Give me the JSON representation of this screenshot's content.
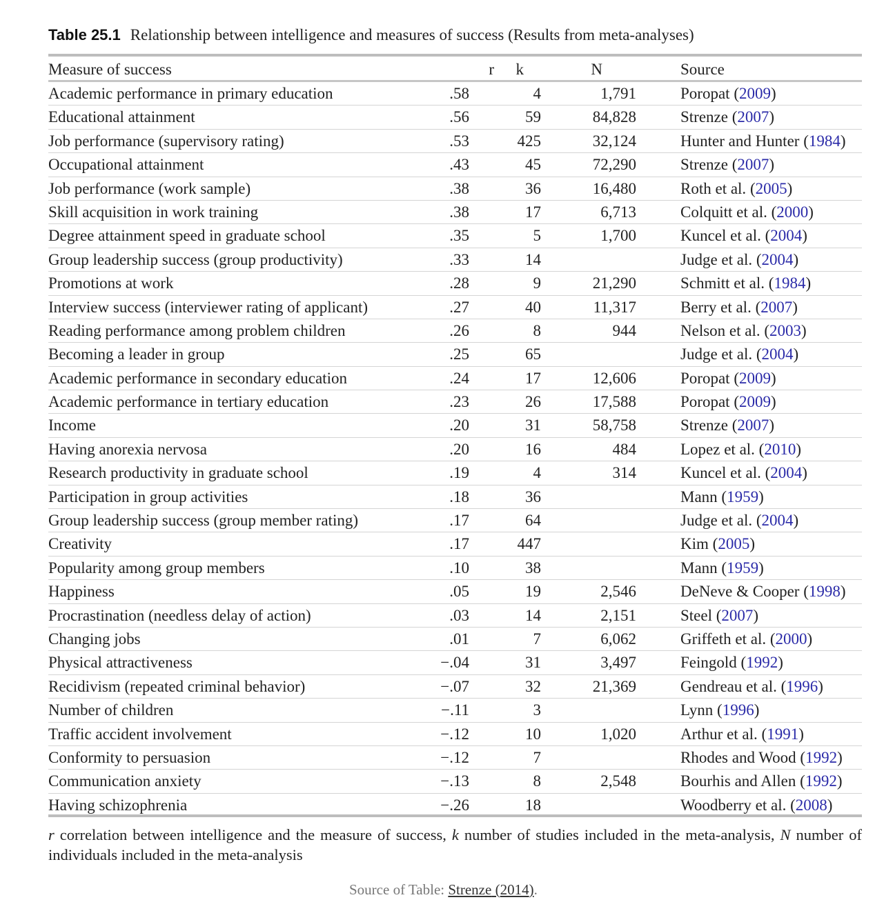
{
  "title": {
    "label": "Table 25.1",
    "text": "Relationship between intelligence and measures of success (Results from meta-analyses)"
  },
  "columns": {
    "measure": "Measure of success",
    "r": "r",
    "k": "k",
    "n": "N",
    "source": "Source"
  },
  "rows": [
    {
      "measure": "Academic performance in primary education",
      "r": ".58",
      "k": "4",
      "n": "1,791",
      "author": "Poropat",
      "year": "2009"
    },
    {
      "measure": "Educational attainment",
      "r": ".56",
      "k": "59",
      "n": "84,828",
      "author": "Strenze",
      "year": "2007"
    },
    {
      "measure": "Job performance (supervisory rating)",
      "r": ".53",
      "k": "425",
      "n": "32,124",
      "author": "Hunter and Hunter",
      "year": "1984"
    },
    {
      "measure": "Occupational attainment",
      "r": ".43",
      "k": "45",
      "n": "72,290",
      "author": "Strenze",
      "year": "2007"
    },
    {
      "measure": "Job performance (work sample)",
      "r": ".38",
      "k": "36",
      "n": "16,480",
      "author": "Roth et al.",
      "year": "2005"
    },
    {
      "measure": "Skill acquisition in work training",
      "r": ".38",
      "k": "17",
      "n": "6,713",
      "author": "Colquitt et al.",
      "year": "2000"
    },
    {
      "measure": "Degree attainment speed in graduate school",
      "r": ".35",
      "k": "5",
      "n": "1,700",
      "author": "Kuncel et al.",
      "year": "2004"
    },
    {
      "measure": "Group leadership success (group productivity)",
      "r": ".33",
      "k": "14",
      "n": "",
      "author": "Judge et al.",
      "year": "2004"
    },
    {
      "measure": "Promotions at work",
      "r": ".28",
      "k": "9",
      "n": "21,290",
      "author": "Schmitt et al.",
      "year": "1984"
    },
    {
      "measure": "Interview success (interviewer rating of applicant)",
      "r": ".27",
      "k": "40",
      "n": "11,317",
      "author": "Berry et al.",
      "year": "2007"
    },
    {
      "measure": "Reading performance among problem children",
      "r": ".26",
      "k": "8",
      "n": "944",
      "author": "Nelson et al.",
      "year": "2003"
    },
    {
      "measure": "Becoming a leader in group",
      "r": ".25",
      "k": "65",
      "n": "",
      "author": "Judge et al.",
      "year": "2004"
    },
    {
      "measure": "Academic performance in secondary education",
      "r": ".24",
      "k": "17",
      "n": "12,606",
      "author": "Poropat",
      "year": "2009"
    },
    {
      "measure": "Academic performance in tertiary education",
      "r": ".23",
      "k": "26",
      "n": "17,588",
      "author": "Poropat",
      "year": "2009"
    },
    {
      "measure": "Income",
      "r": ".20",
      "k": "31",
      "n": "58,758",
      "author": "Strenze",
      "year": "2007"
    },
    {
      "measure": "Having anorexia nervosa",
      "r": ".20",
      "k": "16",
      "n": "484",
      "author": "Lopez et al.",
      "year": "2010"
    },
    {
      "measure": "Research productivity in graduate school",
      "r": ".19",
      "k": "4",
      "n": "314",
      "author": "Kuncel et al.",
      "year": "2004"
    },
    {
      "measure": "Participation in group activities",
      "r": ".18",
      "k": "36",
      "n": "",
      "author": "Mann",
      "year": "1959"
    },
    {
      "measure": "Group leadership success (group member rating)",
      "r": ".17",
      "k": "64",
      "n": "",
      "author": "Judge et al.",
      "year": "2004"
    },
    {
      "measure": "Creativity",
      "r": ".17",
      "k": "447",
      "n": "",
      "author": "Kim",
      "year": "2005"
    },
    {
      "measure": "Popularity among group members",
      "r": ".10",
      "k": "38",
      "n": "",
      "author": "Mann",
      "year": "1959"
    },
    {
      "measure": "Happiness",
      "r": ".05",
      "k": "19",
      "n": "2,546",
      "author": "DeNeve & Cooper",
      "year": "1998"
    },
    {
      "measure": "Procrastination (needless delay of action)",
      "r": ".03",
      "k": "14",
      "n": "2,151",
      "author": "Steel",
      "year": "2007"
    },
    {
      "measure": "Changing jobs",
      "r": ".01",
      "k": "7",
      "n": "6,062",
      "author": "Griffeth et al.",
      "year": "2000"
    },
    {
      "measure": "Physical attractiveness",
      "r": "−.04",
      "k": "31",
      "n": "3,497",
      "author": "Feingold",
      "year": "1992"
    },
    {
      "measure": "Recidivism (repeated criminal behavior)",
      "r": "−.07",
      "k": "32",
      "n": "21,369",
      "author": "Gendreau et al.",
      "year": "1996"
    },
    {
      "measure": "Number of children",
      "r": "−.11",
      "k": "3",
      "n": "",
      "author": "Lynn",
      "year": "1996"
    },
    {
      "measure": "Traffic accident involvement",
      "r": "−.12",
      "k": "10",
      "n": "1,020",
      "author": "Arthur et al.",
      "year": "1991"
    },
    {
      "measure": "Conformity to persuasion",
      "r": "−.12",
      "k": "7",
      "n": "",
      "author": "Rhodes and Wood",
      "year": "1992"
    },
    {
      "measure": "Communication anxiety",
      "r": "−.13",
      "k": "8",
      "n": "2,548",
      "author": "Bourhis and Allen",
      "year": "1992"
    },
    {
      "measure": "Having schizophrenia",
      "r": "−.26",
      "k": "18",
      "n": "",
      "author": "Woodberry et al.",
      "year": "2008"
    }
  ],
  "footnote": {
    "r_sym": "r",
    "r_text": " correlation between intelligence and the measure of success, ",
    "k_sym": "k",
    "k_text": " number of studies included in the meta-analysis, ",
    "n_sym": "N",
    "n_text": " number of individuals included in the meta-analysis"
  },
  "source_note": {
    "prefix": "Source of Table: ",
    "link_author": "Strenze",
    "link_year": "2014",
    "suffix": "."
  },
  "colors": {
    "year_link": "#2a2aa8",
    "rule": "#bdbdbd"
  }
}
